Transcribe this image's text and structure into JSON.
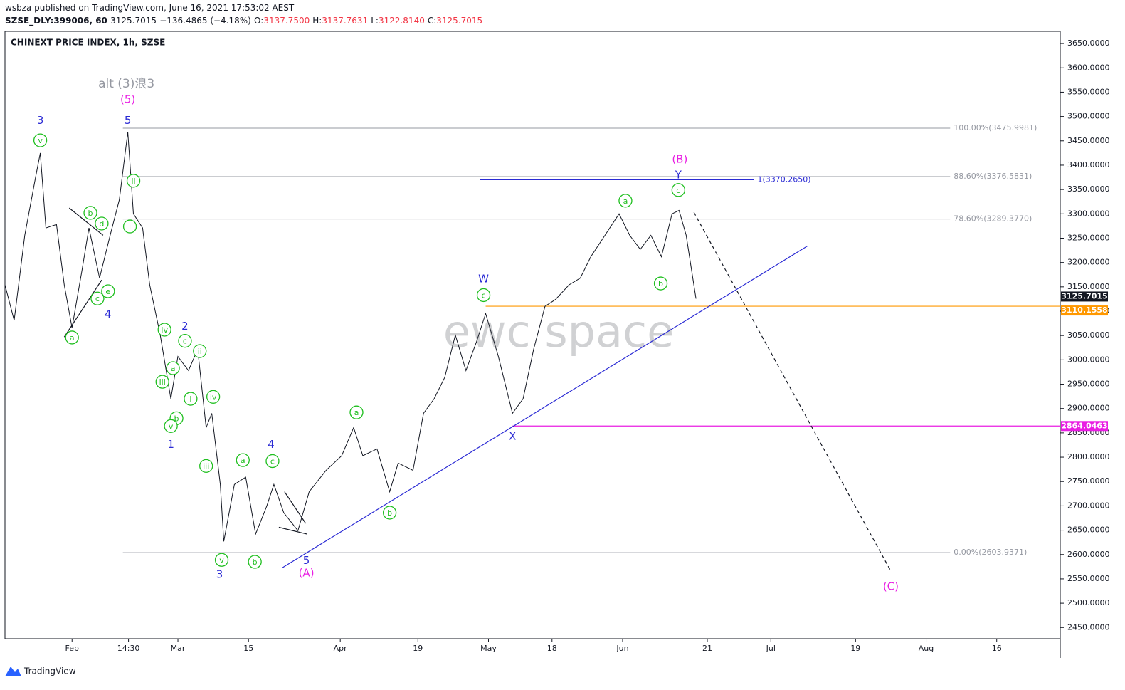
{
  "header": {
    "published": "wsbza published on TradingView.com, June 16, 2021 17:53:02 AEST",
    "symbol": "SZSE_DLY:399006, 60",
    "price": "3125.7015",
    "change": "−136.4865 (−4.18%)",
    "ohlc": [
      {
        "label": "O:",
        "value": "3137.7500"
      },
      {
        "label": "H:",
        "value": "3137.7631"
      },
      {
        "label": "L:",
        "value": "3122.8140"
      },
      {
        "label": "C:",
        "value": "3125.7015"
      }
    ]
  },
  "chart_data": {
    "type": "line",
    "title": "CHINEXT PRICE INDEX, 1h, SZSE",
    "watermark": "ewc space",
    "color": "#131722",
    "x": [
      -9.5,
      -8.2,
      -6.7,
      -5.2,
      -4.5,
      -3.7,
      -2.2,
      -1.1,
      0,
      1.4,
      2.4,
      3.9,
      5.4,
      6.7,
      7.9,
      8.7,
      10,
      11,
      12.5,
      14,
      15,
      16.5,
      17.8,
      19,
      19.8,
      21,
      21.5,
      23,
      24.6,
      26,
      27.6,
      28.6,
      30,
      32,
      33.6,
      36,
      38.2,
      39.9,
      41.2,
      43.2,
      45,
      46.2,
      48.3,
      49.8,
      51.3,
      52.8,
      54.3,
      55.8,
      57.3,
      58.6,
      60.4,
      62.4,
      63.9,
      65.4,
      67,
      68.5,
      70.4,
      72,
      73.5,
      75.5,
      77.5,
      79,
      80.5,
      82,
      83.5,
      85,
      86,
      87,
      88.4
    ],
    "values": [
      3154,
      3081,
      3256,
      3373,
      3425,
      3271,
      3278,
      3154,
      3066,
      3183,
      3271,
      3168,
      3256,
      3329,
      3468,
      3300,
      3271,
      3154,
      3051,
      2920,
      3007,
      2978,
      3022,
      2861,
      2890,
      2744,
      2627,
      2744,
      2759,
      2642,
      2700,
      2744,
      2686,
      2649,
      2729,
      2773,
      2803,
      2861,
      2803,
      2817,
      2729,
      2788,
      2773,
      2890,
      2920,
      2964,
      3051,
      2978,
      3037,
      3095,
      3007,
      2890,
      2920,
      3022,
      3110,
      3124,
      3154,
      3168,
      3212,
      3256,
      3300,
      3256,
      3227,
      3256,
      3212,
      3300,
      3307,
      3256,
      3125.7
    ],
    "xlim": [
      -9.5,
      140
    ],
    "ylim": [
      2427,
      3675
    ],
    "yticks": [
      {
        "value": 2450,
        "label": "2450.0000"
      },
      {
        "value": 2500,
        "label": "2500.0000"
      },
      {
        "value": 2550,
        "label": "2550.0000"
      },
      {
        "value": 2600,
        "label": "2600.0000"
      },
      {
        "value": 2650,
        "label": "2650.0000"
      },
      {
        "value": 2700,
        "label": "2700.0000"
      },
      {
        "value": 2750,
        "label": "2750.0000"
      },
      {
        "value": 2800,
        "label": "2800.0000"
      },
      {
        "value": 2850,
        "label": "2850.0000"
      },
      {
        "value": 2900,
        "label": "2900.0000"
      },
      {
        "value": 2950,
        "label": "2950.0000"
      },
      {
        "value": 3000,
        "label": "3000.0000"
      },
      {
        "value": 3050,
        "label": "3050.0000"
      },
      {
        "value": 3100,
        "label": "3100.0000"
      },
      {
        "value": 3150,
        "label": "3150.0000"
      },
      {
        "value": 3200,
        "label": "3200.0000"
      },
      {
        "value": 3250,
        "label": "3250.0000"
      },
      {
        "value": 3300,
        "label": "3300.0000"
      },
      {
        "value": 3350,
        "label": "3350.0000"
      },
      {
        "value": 3400,
        "label": "3400.0000"
      },
      {
        "value": 3450,
        "label": "3450.0000"
      },
      {
        "value": 3500,
        "label": "3500.0000"
      },
      {
        "value": 3550,
        "label": "3550.0000"
      },
      {
        "value": 3600,
        "label": "3600.0000"
      },
      {
        "value": 3650,
        "label": "3650.0000"
      }
    ],
    "xticks": [
      {
        "value": 0,
        "label": "Feb"
      },
      {
        "value": 8,
        "label": "14:30"
      },
      {
        "value": 15,
        "label": "Mar"
      },
      {
        "value": 25,
        "label": "15"
      },
      {
        "value": 38,
        "label": "Apr"
      },
      {
        "value": 49,
        "label": "19"
      },
      {
        "value": 59,
        "label": "May"
      },
      {
        "value": 68,
        "label": "18"
      },
      {
        "value": 78,
        "label": "Jun"
      },
      {
        "value": 90,
        "label": "21"
      },
      {
        "value": 99,
        "label": "Jul"
      },
      {
        "value": 111,
        "label": "19"
      },
      {
        "value": 121,
        "label": "Aug"
      },
      {
        "value": 131,
        "label": "16"
      }
    ],
    "levels": [
      {
        "value": 3475.9981,
        "label": "100.00%(3475.9981)",
        "x_start": 7.2,
        "x_end": 124.4,
        "color": "#9598a1"
      },
      {
        "value": 3376.5831,
        "label": "88.60%(3376.5831)",
        "x_start": 7.2,
        "x_end": 124.4,
        "color": "#9598a1"
      },
      {
        "value": 3289.377,
        "label": "78.60%(3289.3770)",
        "x_start": 7.2,
        "x_end": 124.4,
        "color": "#9598a1"
      },
      {
        "value": 2603.9371,
        "label": "0.00%(2603.9371)",
        "x_start": 7.2,
        "x_end": 124.4,
        "color": "#9598a1"
      },
      {
        "value": 3370.265,
        "label": "1(3370.2650)",
        "x_start": 57.8,
        "x_end": 96.6,
        "color": "#2a2ad4"
      }
    ],
    "price_lines": [
      {
        "value": 3110.1558,
        "x_start": 58.6,
        "color": "#ff9800"
      },
      {
        "value": 2864.0463,
        "x_start": 62.4,
        "color": "#e91ee3"
      }
    ],
    "price_tags": [
      {
        "value": 3125.7015,
        "color": "#131722"
      },
      {
        "value": 3110.1558,
        "color": "#ff9800"
      },
      {
        "value": 2864.0463,
        "color": "#e91ee3"
      }
    ],
    "lines": [
      {
        "x": [
          29.8,
          104.2
        ],
        "y": [
          2573,
          3234
        ],
        "color": "#2a2ad4",
        "dash": false
      },
      {
        "x": [
          88.1,
          116
        ],
        "y": [
          3303,
          2566
        ],
        "color": "#131722",
        "dash": true
      },
      {
        "x": [
          -0.4,
          4.4
        ],
        "y": [
          3312,
          3256
        ],
        "color": "#131722",
        "dash": false
      },
      {
        "x": [
          -1.1,
          4.2
        ],
        "y": [
          3047,
          3164
        ],
        "color": "#131722",
        "dash": false
      },
      {
        "x": [
          30.1,
          33.1
        ],
        "y": [
          2729,
          2664
        ],
        "color": "#131722",
        "dash": false
      },
      {
        "x": [
          29.3,
          33.3
        ],
        "y": [
          2656,
          2642
        ],
        "color": "#131722",
        "dash": false
      }
    ],
    "annotations": [
      {
        "text": "alt (3)浪3",
        "x": 7.7,
        "y": 3568,
        "color": "#9598a1",
        "circled": false
      },
      {
        "text": "3",
        "x": -4.5,
        "y": 3493,
        "color": "#2a2ad4",
        "circled": false
      },
      {
        "text": "5",
        "x": 7.9,
        "y": 3493,
        "color": "#2a2ad4",
        "circled": false
      },
      {
        "text": "4",
        "x": 5.1,
        "y": 3095,
        "color": "#2a2ad4",
        "circled": false
      },
      {
        "text": "2",
        "x": 16.0,
        "y": 3070,
        "color": "#2a2ad4",
        "circled": false
      },
      {
        "text": "1",
        "x": 14.0,
        "y": 2827,
        "color": "#2a2ad4",
        "circled": false
      },
      {
        "text": "3",
        "x": 20.9,
        "y": 2560,
        "color": "#2a2ad4",
        "circled": false
      },
      {
        "text": "4",
        "x": 28.2,
        "y": 2827,
        "color": "#2a2ad4",
        "circled": false
      },
      {
        "text": "5",
        "x": 33.2,
        "y": 2589,
        "color": "#2a2ad4",
        "circled": false
      },
      {
        "text": "W",
        "x": 58.3,
        "y": 3167,
        "color": "#2a2ad4",
        "circled": false
      },
      {
        "text": "X",
        "x": 62.4,
        "y": 2844,
        "color": "#2a2ad4",
        "circled": false
      },
      {
        "text": "Y",
        "x": 85.9,
        "y": 3381,
        "color": "#2a2ad4",
        "circled": false
      },
      {
        "text": "(5)",
        "x": 7.9,
        "y": 3536,
        "color": "#e91ee3",
        "circled": false
      },
      {
        "text": "(B)",
        "x": 86.1,
        "y": 3413,
        "color": "#e91ee3",
        "circled": false
      },
      {
        "text": "(A)",
        "x": 33.2,
        "y": 2563,
        "color": "#e91ee3",
        "circled": false
      },
      {
        "text": "(C)",
        "x": 116.0,
        "y": 2535,
        "color": "#e91ee3",
        "circled": false
      },
      {
        "text": "v",
        "x": -4.5,
        "y": 3451,
        "color": "#1fbf1f",
        "circled": true
      },
      {
        "text": "b",
        "x": 2.6,
        "y": 3302,
        "color": "#1fbf1f",
        "circled": true
      },
      {
        "text": "d",
        "x": 4.2,
        "y": 3280,
        "color": "#1fbf1f",
        "circled": true
      },
      {
        "text": "c",
        "x": 3.6,
        "y": 3126,
        "color": "#1fbf1f",
        "circled": true
      },
      {
        "text": "e",
        "x": 5.1,
        "y": 3141,
        "color": "#1fbf1f",
        "circled": true
      },
      {
        "text": "a",
        "x": 0,
        "y": 3046,
        "color": "#1fbf1f",
        "circled": true
      },
      {
        "text": "ii",
        "x": 8.7,
        "y": 3368,
        "color": "#1fbf1f",
        "circled": true
      },
      {
        "text": "i",
        "x": 8.2,
        "y": 3274,
        "color": "#1fbf1f",
        "circled": true
      },
      {
        "text": "iv",
        "x": 13.1,
        "y": 3062,
        "color": "#1fbf1f",
        "circled": true
      },
      {
        "text": "c",
        "x": 16.0,
        "y": 3039,
        "color": "#1fbf1f",
        "circled": true
      },
      {
        "text": "ii",
        "x": 18.1,
        "y": 3018,
        "color": "#1fbf1f",
        "circled": true
      },
      {
        "text": "a",
        "x": 14.3,
        "y": 2983,
        "color": "#1fbf1f",
        "circled": true
      },
      {
        "text": "iii",
        "x": 12.8,
        "y": 2955,
        "color": "#1fbf1f",
        "circled": true
      },
      {
        "text": "i",
        "x": 16.8,
        "y": 2920,
        "color": "#1fbf1f",
        "circled": true
      },
      {
        "text": "b",
        "x": 14.8,
        "y": 2880,
        "color": "#1fbf1f",
        "circled": true
      },
      {
        "text": "v",
        "x": 14.0,
        "y": 2864,
        "color": "#1fbf1f",
        "circled": true
      },
      {
        "text": "iv",
        "x": 20.0,
        "y": 2924,
        "color": "#1fbf1f",
        "circled": true
      },
      {
        "text": "iii",
        "x": 19.0,
        "y": 2782,
        "color": "#1fbf1f",
        "circled": true
      },
      {
        "text": "a",
        "x": 24.2,
        "y": 2794,
        "color": "#1fbf1f",
        "circled": true
      },
      {
        "text": "c",
        "x": 28.4,
        "y": 2792,
        "color": "#1fbf1f",
        "circled": true
      },
      {
        "text": "v",
        "x": 21.2,
        "y": 2589,
        "color": "#1fbf1f",
        "circled": true
      },
      {
        "text": "b",
        "x": 25.9,
        "y": 2585,
        "color": "#1fbf1f",
        "circled": true
      },
      {
        "text": "a",
        "x": 40.3,
        "y": 2892,
        "color": "#1fbf1f",
        "circled": true
      },
      {
        "text": "b",
        "x": 45.0,
        "y": 2686,
        "color": "#1fbf1f",
        "circled": true
      },
      {
        "text": "c",
        "x": 58.3,
        "y": 3133,
        "color": "#1fbf1f",
        "circled": true
      },
      {
        "text": "a",
        "x": 78.4,
        "y": 3327,
        "color": "#1fbf1f",
        "circled": true
      },
      {
        "text": "b",
        "x": 83.4,
        "y": 3157,
        "color": "#1fbf1f",
        "circled": true
      },
      {
        "text": "c",
        "x": 85.9,
        "y": 3349,
        "color": "#1fbf1f",
        "circled": true
      }
    ]
  },
  "footer": {
    "brand": "TradingView"
  }
}
